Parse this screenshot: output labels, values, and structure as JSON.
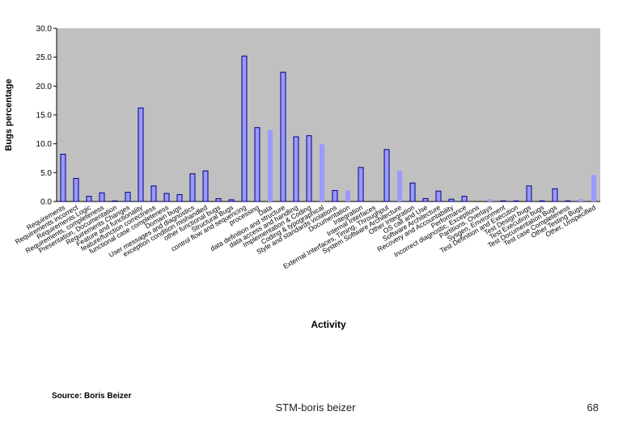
{
  "slide": {
    "source": "Source: Boris Beizer",
    "footer": "STM-boris beizer",
    "page_number": "68"
  },
  "colors": {
    "plot_background": "#c0c0c0",
    "bar_fill_primary": "#9999ff",
    "bar_stroke_primary": "#000080",
    "bar_fill_secondary": "#9999ff"
  },
  "chart_data": {
    "type": "bar",
    "title": "",
    "xlabel": "Activity",
    "ylabel": "Bugs percentage",
    "ylim": [
      0,
      30
    ],
    "yticks": [
      "0.0",
      "5.0",
      "10.0",
      "15.0",
      "20.0",
      "25.0",
      "30.0"
    ],
    "grid": false,
    "legend": "none",
    "categories": [
      "Requirements",
      "Requirements incorrect",
      "Requirements Logic",
      "Requirements, completeness",
      "Presentation, Documentation",
      "Requirements Changes",
      "Feature and functionality",
      "feature/function correctness",
      "functional case completeness",
      "Domain bugs",
      "User messages and diagnostics",
      "exception condition mishandled",
      "other functional bugs",
      "Structural Bugs",
      "control flow and sequencing",
      "processing",
      "Data",
      "data definition and structure",
      "data access and handling",
      "Implementation & Coding",
      "Coding & typographical",
      "Style and standards violations",
      "Documentation",
      "Integration",
      "Internal Interfaces",
      "External Interfaces, Timing, Throughput",
      "System Software Architecture",
      "Other Integration",
      "OS call and Use",
      "Software Architecture",
      "Recovery and Accountability",
      "Performance",
      "Incorrect diagnostic, Exceptions",
      "Partitions, Overlays",
      "Sysgen, Environment",
      "Test Definition and Execution",
      "Test Design bugs",
      "Test Execution bugs",
      "Test Documentation Bugs",
      "Test case Completeness",
      "Other Testing Bugs",
      "Other, Unspecified"
    ],
    "series": [
      {
        "values": [
          8.2,
          4.0,
          0.9,
          1.5,
          0.1,
          1.6,
          16.2,
          2.7,
          1.4,
          1.2,
          4.8,
          5.3,
          0.5,
          0.3,
          25.2,
          12.8,
          12.4,
          22.4,
          11.2,
          11.4,
          9.9,
          1.9,
          1.9,
          5.9,
          0.0,
          9.0,
          5.3,
          3.2,
          0.5,
          1.8,
          0.4,
          0.9,
          0.0,
          0.4,
          0.1,
          0.1,
          2.7,
          0.1,
          2.2,
          0.1,
          0.4,
          4.6
        ],
        "styles": [
          "outline",
          "outline",
          "outline",
          "outline",
          "outline",
          "outline",
          "outline",
          "outline",
          "outline",
          "outline",
          "outline",
          "outline",
          "outline",
          "outline",
          "outline",
          "outline",
          "flat",
          "outline",
          "outline",
          "outline",
          "flat",
          "outline",
          "flat",
          "outline",
          "outline",
          "outline",
          "flat",
          "outline",
          "outline",
          "outline",
          "outline",
          "outline",
          "outline",
          "flat",
          "outline",
          "outline",
          "outline",
          "outline",
          "outline",
          "outline",
          "flat",
          "flat"
        ]
      }
    ]
  }
}
